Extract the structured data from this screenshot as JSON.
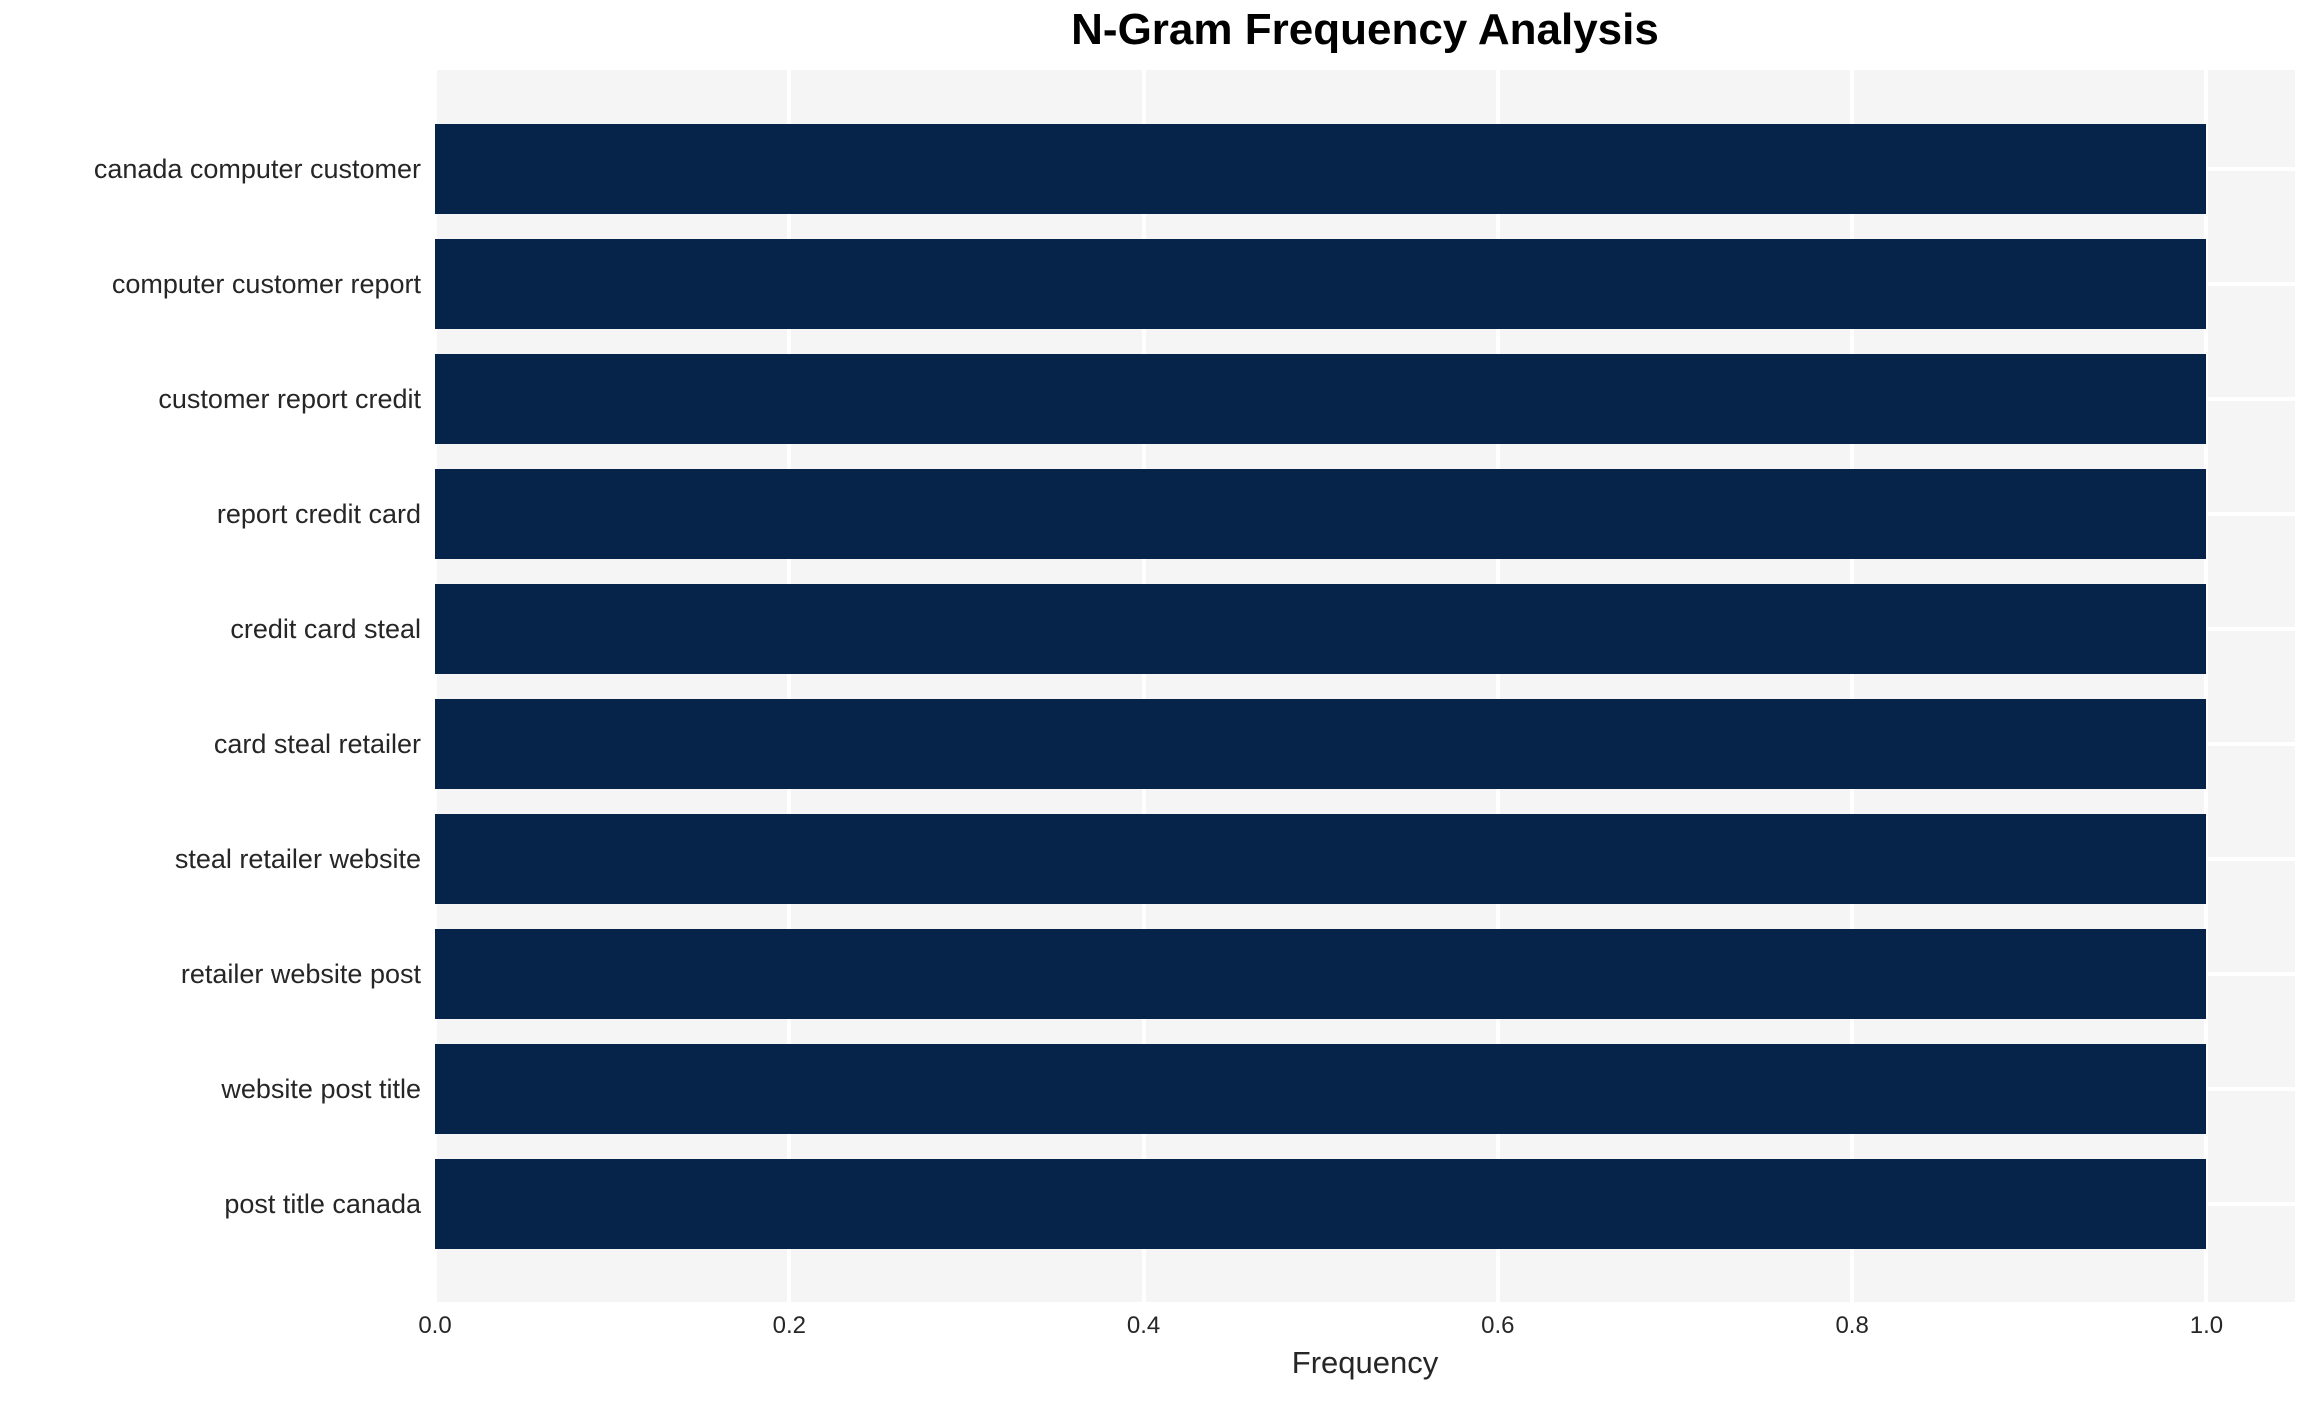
{
  "chart_data": {
    "type": "bar",
    "orientation": "horizontal",
    "title": "N-Gram Frequency Analysis",
    "xlabel": "Frequency",
    "ylabel": "",
    "categories": [
      "canada computer customer",
      "computer customer report",
      "customer report credit",
      "report credit card",
      "credit card steal",
      "card steal retailer",
      "steal retailer website",
      "retailer website post",
      "website post title",
      "post title canada"
    ],
    "values": [
      1.0,
      1.0,
      1.0,
      1.0,
      1.0,
      1.0,
      1.0,
      1.0,
      1.0,
      1.0
    ],
    "xticks": [
      {
        "value": 0.0,
        "label": "0.0"
      },
      {
        "value": 0.2,
        "label": "0.2"
      },
      {
        "value": 0.4,
        "label": "0.4"
      },
      {
        "value": 0.6,
        "label": "0.6"
      },
      {
        "value": 0.8,
        "label": "0.8"
      },
      {
        "value": 1.0,
        "label": "1.0"
      }
    ],
    "xlim": [
      0,
      1.05
    ],
    "grid": true,
    "legend": false,
    "colors": {
      "bar": "#062349",
      "plot_background": "#f5f5f5",
      "gridline": "#ffffff",
      "text": "#262626",
      "title": "#000000"
    }
  }
}
